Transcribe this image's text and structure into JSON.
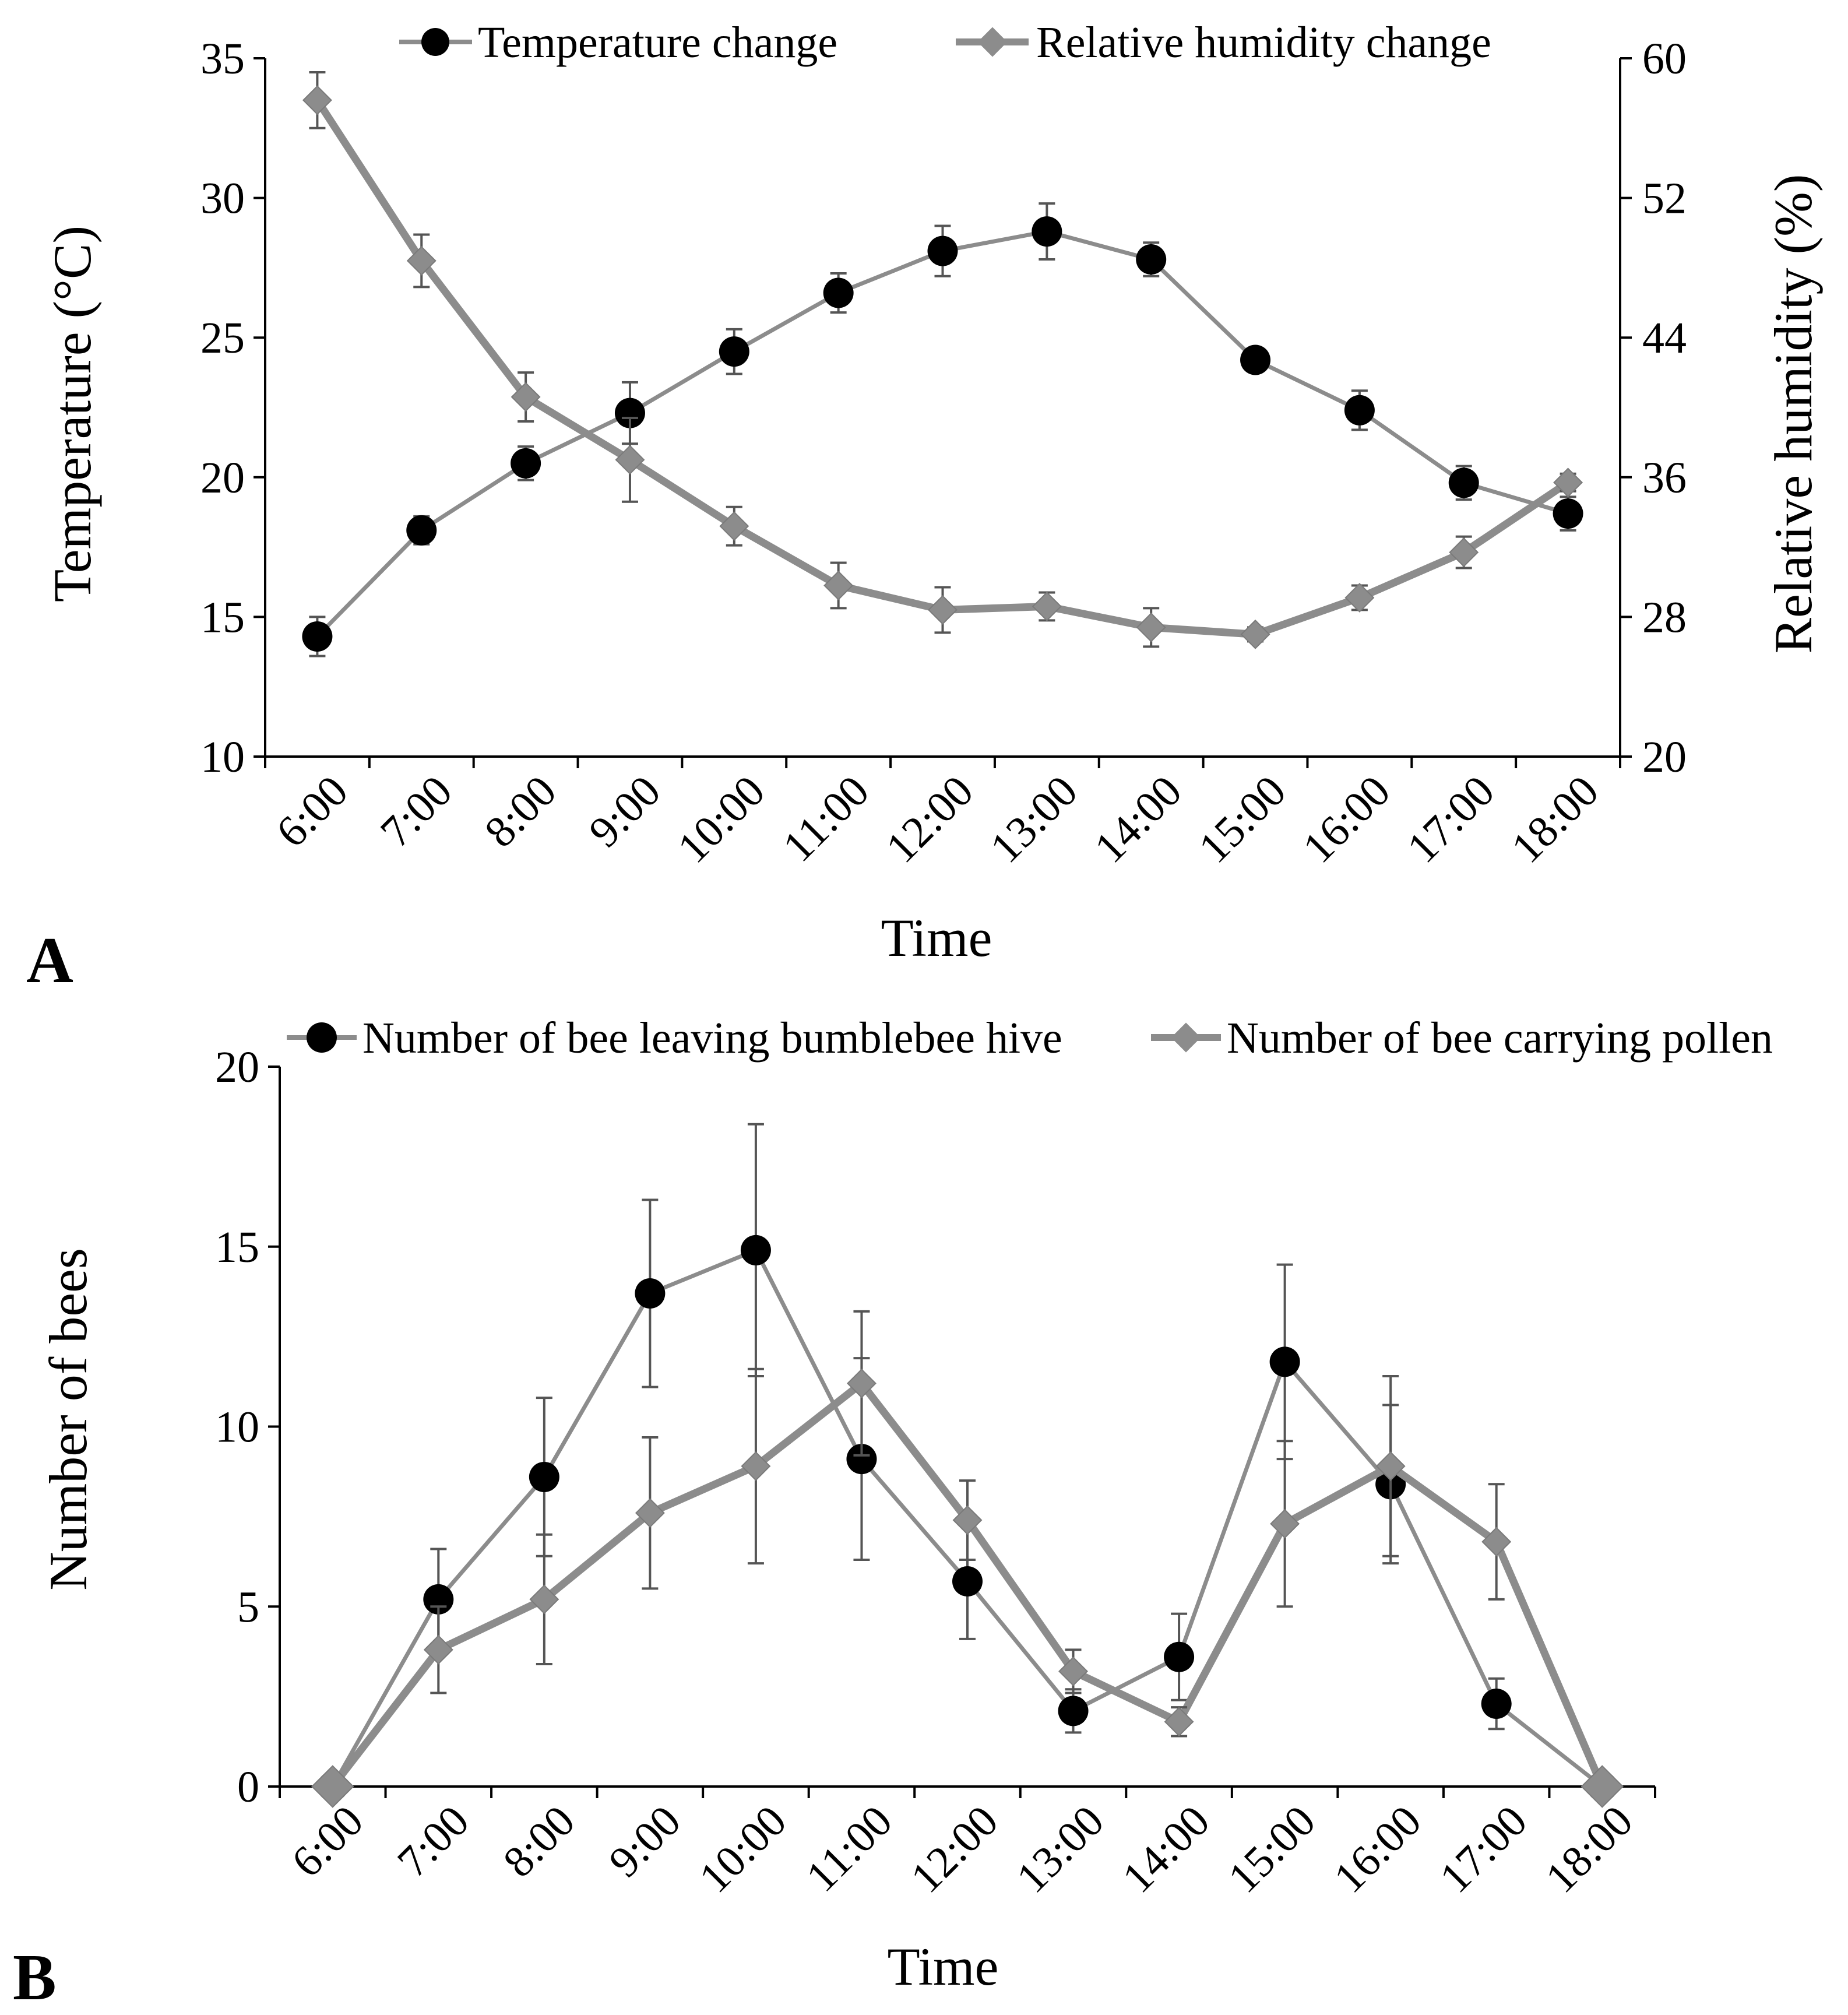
{
  "chart_data": [
    {
      "panel_label": "A",
      "type": "line",
      "xlabel": "Time",
      "ylabel": "Temperature (°C)",
      "y2label": "Relative humidity (%)",
      "categories": [
        "6:00",
        "7:00",
        "8:00",
        "9:00",
        "10:00",
        "11:00",
        "12:00",
        "13:00",
        "14:00",
        "15:00",
        "16:00",
        "17:00",
        "18:00"
      ],
      "ylim": [
        10,
        35
      ],
      "y_ticks": [
        "10",
        "15",
        "20",
        "25",
        "30",
        "35"
      ],
      "y2lim": [
        20,
        60
      ],
      "y2_ticks": [
        "20",
        "28",
        "36",
        "44",
        "52",
        "60"
      ],
      "legend_position": "top",
      "series": [
        {
          "name": "Temperature change",
          "axis": "left",
          "marker": "circle",
          "color": "#000000",
          "line_color": "#8c8c8c",
          "values": [
            14.3,
            18.1,
            20.5,
            22.3,
            24.5,
            26.6,
            28.1,
            28.8,
            27.8,
            24.2,
            22.4,
            19.8,
            18.7
          ],
          "errors": [
            0.7,
            0.5,
            0.6,
            1.1,
            0.8,
            0.7,
            0.9,
            1.0,
            0.6,
            0.0,
            0.7,
            0.6,
            0.6
          ]
        },
        {
          "name": "Relative humidity change",
          "axis": "right",
          "marker": "diamond",
          "color": "#8c8c8c",
          "line_color": "#8c8c8c",
          "values": [
            57.6,
            48.4,
            40.6,
            37.0,
            33.2,
            29.8,
            28.4,
            28.6,
            27.4,
            27.0,
            29.1,
            31.7,
            35.7
          ],
          "errors": [
            1.6,
            1.5,
            1.4,
            2.4,
            1.1,
            1.3,
            1.3,
            0.8,
            1.1,
            0.4,
            0.7,
            0.9,
            0.5
          ]
        }
      ]
    },
    {
      "panel_label": "B",
      "type": "line",
      "xlabel": "Time",
      "ylabel": "Number of bees",
      "categories": [
        "6:00",
        "7:00",
        "8:00",
        "9:00",
        "10:00",
        "11:00",
        "12:00",
        "13:00",
        "14:00",
        "15:00",
        "16:00",
        "17:00",
        "18:00"
      ],
      "ylim": [
        0,
        20
      ],
      "y_ticks": [
        "0",
        "5",
        "10",
        "15",
        "20"
      ],
      "legend_position": "top",
      "series": [
        {
          "name": "Number of bee leaving bumblebee hive",
          "marker": "circle",
          "color": "#000000",
          "line_color": "#8c8c8c",
          "values": [
            0,
            5.2,
            8.6,
            13.7,
            14.9,
            9.1,
            5.7,
            2.1,
            3.6,
            11.8,
            8.4,
            2.3,
            0
          ],
          "errors": [
            0,
            1.4,
            2.2,
            2.6,
            3.5,
            2.8,
            1.6,
            0.6,
            1.2,
            2.7,
            2.2,
            0.7,
            0
          ]
        },
        {
          "name": "Number of bee carrying pollen",
          "marker": "diamond",
          "color": "#8c8c8c",
          "line_color": "#8c8c8c",
          "values": [
            0,
            3.8,
            5.2,
            7.6,
            8.9,
            11.2,
            7.4,
            3.2,
            1.8,
            7.3,
            8.9,
            6.8,
            0
          ],
          "errors": [
            0,
            1.2,
            1.8,
            2.1,
            2.7,
            2.0,
            1.1,
            0.6,
            0.4,
            2.3,
            2.5,
            1.6,
            0
          ]
        }
      ]
    }
  ]
}
